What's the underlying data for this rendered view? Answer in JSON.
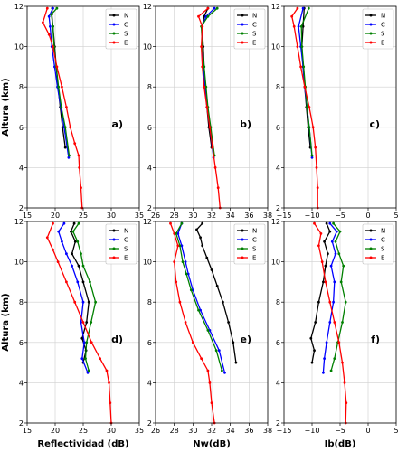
{
  "chart_data": [
    {
      "type": "line",
      "panel": "a",
      "label": "a)",
      "ylabel": "Altura (km)",
      "xlabel": "",
      "xlim": [
        15,
        35
      ],
      "ylim": [
        2,
        12
      ],
      "xticks": [
        15,
        20,
        25,
        30,
        35
      ],
      "yticks": [
        2,
        4,
        6,
        8,
        10,
        12
      ],
      "legend": "top-right",
      "grid": true,
      "series": [
        {
          "name": "N",
          "color": "#000000",
          "x": [
            21.8,
            21.3,
            20.9,
            20.5,
            20.2,
            19.9,
            19.6,
            19.4,
            19.5
          ],
          "y": [
            5.0,
            6.0,
            7.0,
            8.0,
            9.0,
            10.0,
            11.0,
            11.6,
            11.9
          ]
        },
        {
          "name": "C",
          "color": "#0000ff",
          "x": [
            22.4,
            21.6,
            21.0,
            20.4,
            19.9,
            19.4,
            19.1,
            18.9,
            19.6
          ],
          "y": [
            4.5,
            6.0,
            7.0,
            8.0,
            9.0,
            10.0,
            11.0,
            11.5,
            11.9
          ]
        },
        {
          "name": "S",
          "color": "#008000",
          "x": [
            22.5,
            21.8,
            21.1,
            20.6,
            20.2,
            19.8,
            19.6,
            19.3,
            20.3
          ],
          "y": [
            4.6,
            6.0,
            7.0,
            8.0,
            9.0,
            10.0,
            11.0,
            11.6,
            11.9
          ]
        },
        {
          "name": "E",
          "color": "#ff0000",
          "x": [
            24.8,
            24.6,
            24.3,
            24.2,
            23.5,
            22.7,
            22.0,
            21.2,
            20.3,
            19.6,
            18.9,
            17.8,
            18.6
          ],
          "y": [
            2.0,
            3.0,
            4.0,
            4.6,
            5.2,
            6.0,
            7.0,
            8.0,
            9.0,
            10.0,
            10.6,
            11.2,
            11.9
          ]
        }
      ]
    },
    {
      "type": "line",
      "panel": "b",
      "label": "b)",
      "ylabel": "",
      "xlabel": "",
      "xlim": [
        26,
        38
      ],
      "ylim": [
        2,
        12
      ],
      "xticks": [
        26,
        28,
        30,
        32,
        34,
        36,
        38
      ],
      "yticks": [
        2,
        4,
        6,
        8,
        10,
        12
      ],
      "legend": "top-right",
      "grid": true,
      "series": [
        {
          "name": "N",
          "color": "#000000",
          "x": [
            32.0,
            31.7,
            31.5,
            31.3,
            31.2,
            31.1,
            31.0,
            31.2,
            31.6
          ],
          "y": [
            5.0,
            6.0,
            7.0,
            8.0,
            9.0,
            10.0,
            11.0,
            11.5,
            11.9
          ]
        },
        {
          "name": "C",
          "color": "#0000ff",
          "x": [
            32.2,
            31.8,
            31.5,
            31.3,
            31.1,
            31.0,
            31.0,
            31.4,
            32.3
          ],
          "y": [
            4.5,
            6.0,
            7.0,
            8.0,
            9.0,
            10.0,
            11.0,
            11.5,
            11.9
          ]
        },
        {
          "name": "S",
          "color": "#008000",
          "x": [
            32.3,
            31.9,
            31.6,
            31.4,
            31.2,
            31.0,
            30.9,
            31.6,
            32.6
          ],
          "y": [
            4.6,
            6.0,
            7.0,
            8.0,
            9.0,
            10.0,
            11.0,
            11.5,
            11.9
          ]
        },
        {
          "name": "E",
          "color": "#ff0000",
          "x": [
            32.9,
            32.7,
            32.4,
            32.1,
            31.8,
            31.5,
            31.2,
            31.0,
            30.9,
            31.0,
            30.6,
            31.6
          ],
          "y": [
            2.0,
            3.0,
            4.0,
            5.0,
            6.0,
            7.0,
            8.0,
            9.0,
            10.0,
            11.0,
            11.5,
            11.9
          ]
        }
      ]
    },
    {
      "type": "line",
      "panel": "c",
      "label": "c)",
      "ylabel": "",
      "xlabel": "",
      "xlim": [
        -15,
        5
      ],
      "ylim": [
        2,
        12
      ],
      "xticks": [
        -15,
        -10,
        -5,
        0,
        5
      ],
      "yticks": [
        2,
        4,
        6,
        8,
        10,
        12
      ],
      "legend": "top-right",
      "grid": true,
      "series": [
        {
          "name": "N",
          "color": "#000000",
          "x": [
            -10.3,
            -10.7,
            -11.0,
            -11.3,
            -11.6,
            -11.8,
            -11.6,
            -11.4
          ],
          "y": [
            5.0,
            6.0,
            7.0,
            8.0,
            9.0,
            10.0,
            11.0,
            11.9
          ]
        },
        {
          "name": "C",
          "color": "#0000ff",
          "x": [
            -10.0,
            -10.5,
            -10.9,
            -11.3,
            -11.6,
            -12.0,
            -12.4,
            -11.6
          ],
          "y": [
            4.5,
            6.0,
            7.0,
            8.0,
            9.0,
            10.0,
            11.0,
            11.9
          ]
        },
        {
          "name": "S",
          "color": "#008000",
          "x": [
            -10.0,
            -10.5,
            -10.9,
            -11.2,
            -11.5,
            -11.8,
            -11.9,
            -10.6
          ],
          "y": [
            4.6,
            6.0,
            7.0,
            8.0,
            9.0,
            10.0,
            11.0,
            11.9
          ]
        },
        {
          "name": "E",
          "color": "#ff0000",
          "x": [
            -9.0,
            -9.0,
            -9.2,
            -9.4,
            -9.8,
            -10.5,
            -11.3,
            -12.0,
            -12.6,
            -13.2,
            -13.6,
            -12.6
          ],
          "y": [
            2.0,
            3.0,
            4.0,
            5.0,
            6.0,
            7.0,
            8.0,
            9.0,
            10.0,
            11.0,
            11.5,
            11.9
          ]
        }
      ]
    },
    {
      "type": "line",
      "panel": "d",
      "label": "d)",
      "ylabel": "Altura (km)",
      "xlabel": "Reflectividad (dB)",
      "xlim": [
        15,
        35
      ],
      "ylim": [
        2,
        12
      ],
      "xticks": [
        15,
        20,
        25,
        30,
        35
      ],
      "yticks": [
        2,
        4,
        6,
        8,
        10,
        12
      ],
      "legend": "top-right",
      "grid": true,
      "series": [
        {
          "name": "N",
          "color": "#000000",
          "x": [
            25.0,
            25.5,
            24.8,
            25.6,
            26.0,
            25.0,
            24.2,
            23.0,
            23.6,
            22.8,
            23.4
          ],
          "y": [
            5.0,
            5.6,
            6.2,
            7.0,
            8.0,
            9.0,
            9.8,
            10.4,
            11.0,
            11.5,
            11.9
          ]
        },
        {
          "name": "C",
          "color": "#0000ff",
          "x": [
            25.8,
            24.8,
            25.2,
            24.6,
            25.0,
            24.0,
            23.0,
            22.0,
            21.2,
            20.6,
            21.6
          ],
          "y": [
            4.5,
            5.2,
            6.0,
            7.0,
            8.0,
            9.0,
            9.8,
            10.4,
            11.0,
            11.5,
            11.9
          ]
        },
        {
          "name": "S",
          "color": "#008000",
          "x": [
            26.0,
            25.4,
            25.6,
            26.4,
            27.2,
            26.2,
            25.0,
            24.6,
            24.0,
            23.2,
            24.2
          ],
          "y": [
            4.6,
            5.2,
            6.0,
            7.0,
            8.0,
            9.0,
            9.8,
            10.4,
            11.0,
            11.5,
            11.9
          ]
        },
        {
          "name": "E",
          "color": "#ff0000",
          "x": [
            30.0,
            29.8,
            29.6,
            29.2,
            28.0,
            26.5,
            25.0,
            23.5,
            22.0,
            20.5,
            19.6,
            18.6,
            19.6
          ],
          "y": [
            2.0,
            3.0,
            4.0,
            4.6,
            5.2,
            6.0,
            7.0,
            8.0,
            9.0,
            10.0,
            10.6,
            11.2,
            11.9
          ]
        }
      ]
    },
    {
      "type": "line",
      "panel": "e",
      "label": "e)",
      "ylabel": "",
      "xlabel": "Nw(dB)",
      "xlim": [
        26,
        38
      ],
      "ylim": [
        2,
        12
      ],
      "xticks": [
        26,
        28,
        30,
        32,
        34,
        36,
        38
      ],
      "yticks": [
        2,
        4,
        6,
        8,
        10,
        12
      ],
      "legend": "top-right",
      "grid": true,
      "series": [
        {
          "name": "N",
          "color": "#000000",
          "x": [
            34.6,
            34.3,
            33.8,
            33.2,
            32.6,
            32.0,
            31.5,
            31.0,
            30.8,
            30.4,
            31.0
          ],
          "y": [
            5.0,
            6.0,
            7.0,
            8.0,
            8.8,
            9.6,
            10.2,
            10.8,
            11.2,
            11.6,
            11.9
          ]
        },
        {
          "name": "C",
          "color": "#0000ff",
          "x": [
            33.4,
            32.8,
            31.8,
            30.8,
            30.0,
            29.5,
            29.2,
            28.8,
            28.4,
            28.8
          ],
          "y": [
            4.5,
            5.6,
            6.6,
            7.6,
            8.6,
            9.4,
            10.0,
            10.8,
            11.4,
            11.9
          ]
        },
        {
          "name": "S",
          "color": "#008000",
          "x": [
            33.1,
            32.5,
            31.6,
            30.6,
            29.8,
            29.3,
            28.9,
            28.6,
            28.2,
            28.8
          ],
          "y": [
            4.6,
            5.6,
            6.6,
            7.6,
            8.6,
            9.4,
            10.0,
            10.8,
            11.4,
            11.9
          ]
        },
        {
          "name": "E",
          "color": "#ff0000",
          "x": [
            32.3,
            32.0,
            31.8,
            31.6,
            30.9,
            30.0,
            29.2,
            28.6,
            28.2,
            28.0,
            28.4,
            28.0,
            27.6
          ],
          "y": [
            2.0,
            3.0,
            4.0,
            4.6,
            5.2,
            6.0,
            7.0,
            8.0,
            9.0,
            10.0,
            10.8,
            11.4,
            11.9
          ]
        }
      ]
    },
    {
      "type": "line",
      "panel": "f",
      "label": "f)",
      "ylabel": "",
      "xlabel": "Ib(dB)",
      "xlim": [
        -15,
        5
      ],
      "ylim": [
        2,
        12
      ],
      "xticks": [
        -15,
        -10,
        -5,
        0,
        5
      ],
      "yticks": [
        2,
        4,
        6,
        8,
        10,
        12
      ],
      "legend": "top-right",
      "grid": true,
      "series": [
        {
          "name": "N",
          "color": "#000000",
          "x": [
            -10.0,
            -9.6,
            -10.2,
            -9.4,
            -8.8,
            -8.0,
            -7.6,
            -7.2,
            -7.8,
            -6.8,
            -7.4
          ],
          "y": [
            5.0,
            5.6,
            6.2,
            7.0,
            8.0,
            9.0,
            9.8,
            10.4,
            11.0,
            11.5,
            11.9
          ]
        },
        {
          "name": "C",
          "color": "#0000ff",
          "x": [
            -8.0,
            -7.8,
            -7.4,
            -6.8,
            -6.2,
            -6.0,
            -6.6,
            -5.8,
            -6.4,
            -5.6,
            -6.8
          ],
          "y": [
            4.5,
            5.2,
            6.0,
            7.0,
            8.0,
            9.0,
            9.8,
            10.4,
            11.0,
            11.5,
            11.9
          ]
        },
        {
          "name": "S",
          "color": "#008000",
          "x": [
            -6.6,
            -6.0,
            -5.4,
            -4.6,
            -4.0,
            -4.8,
            -4.4,
            -5.2,
            -5.8,
            -5.0,
            -6.2
          ],
          "y": [
            4.6,
            5.2,
            6.0,
            7.0,
            8.0,
            9.0,
            9.8,
            10.4,
            11.0,
            11.5,
            11.9
          ]
        },
        {
          "name": "E",
          "color": "#ff0000",
          "x": [
            -4.0,
            -3.9,
            -4.2,
            -4.6,
            -5.2,
            -6.0,
            -6.8,
            -7.6,
            -8.2,
            -8.8,
            -8.4,
            -9.6
          ],
          "y": [
            2.0,
            3.0,
            4.0,
            5.0,
            6.0,
            7.0,
            8.0,
            9.0,
            10.0,
            10.8,
            11.4,
            11.9
          ]
        }
      ]
    }
  ]
}
